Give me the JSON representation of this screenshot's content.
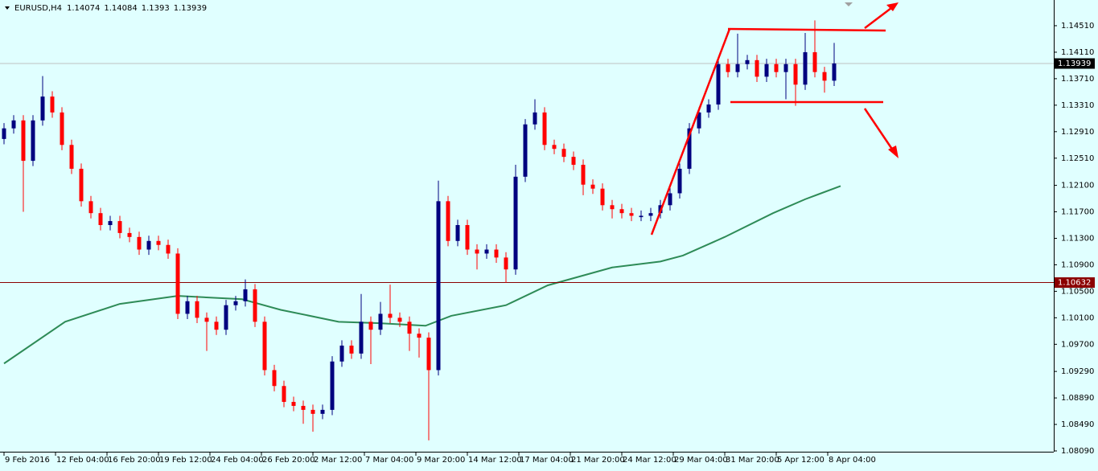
{
  "chart_data": {
    "type": "candlestick",
    "symbol": "EURUSD,H4",
    "ohlc": [
      1.14074,
      1.14084,
      1.1393,
      1.13939
    ],
    "up_color": "#00007f",
    "down_color": "#ff0000",
    "x": [
      0,
      3,
      6,
      9,
      12,
      15,
      18,
      21,
      24,
      27,
      30,
      33,
      36,
      39,
      42,
      45,
      48,
      51,
      54,
      57,
      60,
      63,
      66,
      69,
      72,
      75,
      78,
      81,
      84,
      87,
      90,
      93,
      96,
      99,
      102,
      105,
      108,
      111,
      114,
      117,
      120,
      123,
      126,
      129,
      132,
      135,
      138,
      141,
      144,
      147,
      150,
      153,
      156,
      159,
      162,
      165,
      168,
      171,
      174,
      177,
      180,
      183,
      186,
      189,
      192,
      195,
      198,
      201,
      204,
      207,
      210,
      213,
      216,
      219,
      222,
      225,
      228,
      231,
      234,
      237,
      240,
      243,
      246,
      249,
      252,
      255,
      258
    ],
    "open": [
      1.128,
      1.1296,
      1.1308,
      1.1247,
      1.1308,
      1.1344,
      1.132,
      1.1271,
      1.1235,
      1.1186,
      1.1168,
      1.115,
      1.1156,
      1.1138,
      1.1132,
      1.1113,
      1.1126,
      1.112,
      1.1107,
      1.1016,
      1.1035,
      1.101,
      1.1004,
      1.0992,
      1.1029,
      1.1035,
      1.1053,
      1.1004,
      1.0931,
      1.0907,
      1.0883,
      1.0877,
      1.0871,
      1.0865,
      1.0871,
      1.0944,
      1.0968,
      1.0956,
      1.1004,
      1.0992,
      1.1016,
      1.101,
      1.1004,
      1.0986,
      1.098,
      1.0931,
      1.1186,
      1.1126,
      1.115,
      1.1113,
      1.1107,
      1.1113,
      1.1101,
      1.1083,
      1.1223,
      1.1302,
      1.132,
      1.1271,
      1.1265,
      1.1253,
      1.1241,
      1.1211,
      1.1205,
      1.118,
      1.1174,
      1.1168,
      1.1162,
      1.1164,
      1.1168,
      1.118,
      1.1198,
      1.1235,
      1.1296,
      1.132,
      1.1332,
      1.1393,
      1.1381,
      1.1393,
      1.1399,
      1.1374,
      1.1393,
      1.1381,
      1.1393,
      1.1362,
      1.1411,
      1.1381,
      1.1368
    ],
    "high": [
      1.1304,
      1.1316,
      1.1316,
      1.1316,
      1.1375,
      1.1352,
      1.1328,
      1.1279,
      1.1243,
      1.1194,
      1.1176,
      1.1164,
      1.1164,
      1.1146,
      1.114,
      1.1134,
      1.1134,
      1.1128,
      1.1115,
      1.1043,
      1.1043,
      1.1018,
      1.1012,
      1.1037,
      1.1043,
      1.1068,
      1.1061,
      1.1012,
      1.0939,
      1.0915,
      1.0891,
      1.0885,
      1.0879,
      1.0879,
      1.0952,
      1.0976,
      1.0976,
      1.1046,
      1.1012,
      1.1034,
      1.106,
      1.1018,
      1.1012,
      1.0994,
      1.0988,
      1.1217,
      1.1194,
      1.1158,
      1.1158,
      1.1121,
      1.1121,
      1.1121,
      1.1109,
      1.1241,
      1.131,
      1.134,
      1.1328,
      1.1279,
      1.1273,
      1.1261,
      1.1249,
      1.1219,
      1.1213,
      1.1188,
      1.1182,
      1.1176,
      1.1172,
      1.1176,
      1.1188,
      1.1206,
      1.1243,
      1.1304,
      1.1328,
      1.134,
      1.1401,
      1.1401,
      1.1439,
      1.1407,
      1.1407,
      1.1401,
      1.1401,
      1.1401,
      1.1401,
      1.144,
      1.1459,
      1.1389,
      1.1425
    ],
    "low": [
      1.1272,
      1.1288,
      1.117,
      1.1239,
      1.13,
      1.1312,
      1.1263,
      1.1227,
      1.1178,
      1.116,
      1.1142,
      1.1142,
      1.113,
      1.1124,
      1.1105,
      1.1105,
      1.1112,
      1.1099,
      1.1008,
      1.1008,
      1.1002,
      1.096,
      1.0984,
      1.0984,
      1.1021,
      1.1027,
      1.0996,
      1.0923,
      1.0899,
      1.0875,
      1.0869,
      1.085,
      1.0838,
      1.0857,
      1.0863,
      1.0936,
      1.0948,
      1.0948,
      1.094,
      1.0984,
      1.1002,
      1.0996,
      1.096,
      1.095,
      1.0825,
      1.0923,
      1.1118,
      1.1118,
      1.1105,
      1.1083,
      1.1099,
      1.1093,
      1.1063,
      1.1075,
      1.1215,
      1.1294,
      1.1263,
      1.1257,
      1.1245,
      1.1233,
      1.1195,
      1.1197,
      1.1172,
      1.116,
      1.116,
      1.1156,
      1.1156,
      1.1156,
      1.116,
      1.1172,
      1.119,
      1.1227,
      1.1288,
      1.1312,
      1.1324,
      1.1373,
      1.1373,
      1.1385,
      1.1366,
      1.1366,
      1.1373,
      1.134,
      1.133,
      1.1354,
      1.1373,
      1.135,
      1.136
    ],
    "close": [
      1.1296,
      1.1308,
      1.1247,
      1.1308,
      1.1344,
      1.132,
      1.1271,
      1.1235,
      1.1186,
      1.1168,
      1.115,
      1.1156,
      1.1138,
      1.1132,
      1.1113,
      1.1126,
      1.112,
      1.1107,
      1.1016,
      1.1035,
      1.101,
      1.1004,
      1.0992,
      1.1029,
      1.1035,
      1.1053,
      1.1004,
      1.0931,
      1.0907,
      1.0883,
      1.0877,
      1.0871,
      1.0865,
      1.0871,
      1.0944,
      1.0968,
      1.0956,
      1.1004,
      1.0992,
      1.1016,
      1.101,
      1.1004,
      1.0986,
      1.098,
      1.0931,
      1.1186,
      1.1126,
      1.115,
      1.1113,
      1.1107,
      1.1113,
      1.1101,
      1.1083,
      1.1223,
      1.1302,
      1.132,
      1.1271,
      1.1265,
      1.1253,
      1.1241,
      1.1211,
      1.1205,
      1.118,
      1.1174,
      1.1168,
      1.1164,
      1.1164,
      1.1168,
      1.118,
      1.1198,
      1.1235,
      1.1296,
      1.132,
      1.1332,
      1.1393,
      1.1381,
      1.1393,
      1.1399,
      1.1374,
      1.1393,
      1.1381,
      1.1393,
      1.1362,
      1.1411,
      1.1381,
      1.1368,
      1.1394
    ],
    "ma": {
      "color": "#2e8b57",
      "x": [
        0,
        19,
        36,
        54,
        74,
        86,
        104,
        116,
        131,
        139,
        156,
        169,
        189,
        204,
        211,
        224,
        239,
        249,
        260
      ],
      "values": [
        1.0941,
        1.1004,
        1.1031,
        1.1043,
        1.1038,
        1.1022,
        1.1004,
        1.1002,
        1.0998,
        1.1013,
        1.1029,
        1.1059,
        1.1086,
        1.1095,
        1.1104,
        1.1132,
        1.1168,
        1.1189,
        1.1209
      ]
    },
    "hlines": [
      {
        "value": 1.10632,
        "color": "#8b0000"
      },
      {
        "value": 1.13939,
        "color": "#c0c0c0",
        "label_color": "#000000"
      }
    ],
    "xlim": [
      -1.25,
      326.25
    ],
    "ylim": [
      1.08078,
      1.14898
    ],
    "xticks": [
      {
        "value": 0,
        "label": "9 Feb 2016"
      },
      {
        "value": 16,
        "label": "12 Feb 04:00"
      },
      {
        "value": 32,
        "label": "16 Feb 20:00"
      },
      {
        "value": 48,
        "label": "19 Feb 12:00"
      },
      {
        "value": 64,
        "label": "24 Feb 04:00"
      },
      {
        "value": 80,
        "label": "26 Feb 20:00"
      },
      {
        "value": 96,
        "label": "2 Mar 12:00"
      },
      {
        "value": 112,
        "label": "7 Mar 04:00"
      },
      {
        "value": 128,
        "label": "9 Mar 20:00"
      },
      {
        "value": 144,
        "label": "14 Mar 12:00"
      },
      {
        "value": 160,
        "label": "17 Mar 04:00"
      },
      {
        "value": 176,
        "label": "21 Mar 20:00"
      },
      {
        "value": 192,
        "label": "24 Mar 12:00"
      },
      {
        "value": 208,
        "label": "29 Mar 04:00"
      },
      {
        "value": 224,
        "label": "31 Mar 20:00"
      },
      {
        "value": 240,
        "label": "5 Apr 12:00"
      },
      {
        "value": 256,
        "label": "8 Apr 04:00"
      }
    ],
    "yticks": [
      {
        "value": 1.1451,
        "label": "1.14510"
      },
      {
        "value": 1.1411,
        "label": "1.14110"
      },
      {
        "value": 1.1371,
        "label": "1.13710"
      },
      {
        "value": 1.1331,
        "label": "1.13310"
      },
      {
        "value": 1.1291,
        "label": "1.12910"
      },
      {
        "value": 1.1251,
        "label": "1.12510"
      },
      {
        "value": 1.121,
        "label": "1.12100"
      },
      {
        "value": 1.117,
        "label": "1.11700"
      },
      {
        "value": 1.113,
        "label": "1.11300"
      },
      {
        "value": 1.109,
        "label": "1.10900"
      },
      {
        "value": 1.105,
        "label": "1.10500"
      },
      {
        "value": 1.101,
        "label": "1.10100"
      },
      {
        "value": 1.097,
        "label": "1.09700"
      },
      {
        "value": 1.0929,
        "label": "1.09290"
      },
      {
        "value": 1.0889,
        "label": "1.08890"
      },
      {
        "value": 1.0849,
        "label": "1.08490"
      },
      {
        "value": 1.0809,
        "label": "1.08090"
      }
    ]
  }
}
